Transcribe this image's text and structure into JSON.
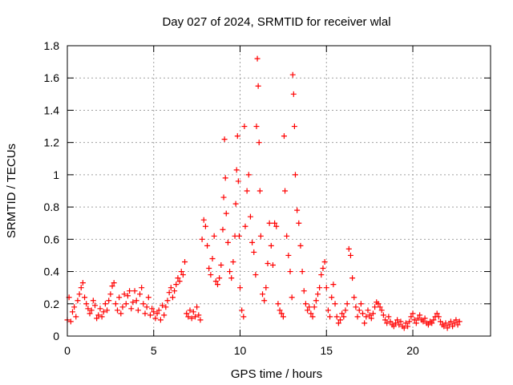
{
  "chart_data": {
    "type": "scatter",
    "title": "Day 027 of 2024, SRMTID for receiver wlal",
    "xlabel": "GPS time / hours",
    "ylabel": "SRMTID / TECUs",
    "xlim": [
      0,
      24.5
    ],
    "ylim": [
      0,
      1.8
    ],
    "xticks": [
      0,
      5,
      10,
      15,
      20
    ],
    "xtick_labels": [
      "0",
      "5",
      "10",
      "15",
      "20"
    ],
    "yticks": [
      0,
      0.2,
      0.4,
      0.6,
      0.8,
      1.0,
      1.2,
      1.4,
      1.6,
      1.8
    ],
    "ytick_labels": [
      "0",
      "0.2",
      "0.4",
      "0.6",
      "0.8",
      "1",
      "1.2",
      "1.4",
      "1.6",
      "1.8"
    ],
    "grid": true,
    "marker": "+",
    "color": "#ff0000",
    "series": [
      {
        "name": "SRMTID",
        "points": [
          [
            0.0,
            0.1
          ],
          [
            0.1,
            0.24
          ],
          [
            0.2,
            0.09
          ],
          [
            0.3,
            0.15
          ],
          [
            0.4,
            0.18
          ],
          [
            0.5,
            0.12
          ],
          [
            0.6,
            0.22
          ],
          [
            0.7,
            0.26
          ],
          [
            0.8,
            0.3
          ],
          [
            0.9,
            0.33
          ],
          [
            1.0,
            0.24
          ],
          [
            1.1,
            0.2
          ],
          [
            1.2,
            0.17
          ],
          [
            1.3,
            0.14
          ],
          [
            1.4,
            0.16
          ],
          [
            1.5,
            0.22
          ],
          [
            1.6,
            0.19
          ],
          [
            1.7,
            0.11
          ],
          [
            1.8,
            0.13
          ],
          [
            1.9,
            0.17
          ],
          [
            2.0,
            0.12
          ],
          [
            2.1,
            0.15
          ],
          [
            2.2,
            0.2
          ],
          [
            2.3,
            0.16
          ],
          [
            2.4,
            0.22
          ],
          [
            2.5,
            0.26
          ],
          [
            2.6,
            0.31
          ],
          [
            2.7,
            0.33
          ],
          [
            2.8,
            0.2
          ],
          [
            2.9,
            0.16
          ],
          [
            3.0,
            0.24
          ],
          [
            3.1,
            0.14
          ],
          [
            3.2,
            0.18
          ],
          [
            3.3,
            0.26
          ],
          [
            3.4,
            0.2
          ],
          [
            3.5,
            0.25
          ],
          [
            3.6,
            0.28
          ],
          [
            3.7,
            0.17
          ],
          [
            3.8,
            0.21
          ],
          [
            3.9,
            0.28
          ],
          [
            4.0,
            0.22
          ],
          [
            4.1,
            0.16
          ],
          [
            4.2,
            0.26
          ],
          [
            4.3,
            0.3
          ],
          [
            4.4,
            0.2
          ],
          [
            4.5,
            0.14
          ],
          [
            4.6,
            0.18
          ],
          [
            4.7,
            0.24
          ],
          [
            4.8,
            0.13
          ],
          [
            4.9,
            0.17
          ],
          [
            5.0,
            0.15
          ],
          [
            5.1,
            0.11
          ],
          [
            5.2,
            0.14
          ],
          [
            5.3,
            0.16
          ],
          [
            5.4,
            0.1
          ],
          [
            5.5,
            0.19
          ],
          [
            5.6,
            0.13
          ],
          [
            5.7,
            0.18
          ],
          [
            5.8,
            0.22
          ],
          [
            5.9,
            0.27
          ],
          [
            6.0,
            0.3
          ],
          [
            6.1,
            0.24
          ],
          [
            6.2,
            0.28
          ],
          [
            6.3,
            0.32
          ],
          [
            6.4,
            0.36
          ],
          [
            6.5,
            0.34
          ],
          [
            6.6,
            0.4
          ],
          [
            6.7,
            0.38
          ],
          [
            6.8,
            0.46
          ],
          [
            6.9,
            0.14
          ],
          [
            7.0,
            0.12
          ],
          [
            7.1,
            0.16
          ],
          [
            7.2,
            0.11
          ],
          [
            7.3,
            0.15
          ],
          [
            7.4,
            0.12
          ],
          [
            7.5,
            0.18
          ],
          [
            7.6,
            0.13
          ],
          [
            7.7,
            0.1
          ],
          [
            7.8,
            0.6
          ],
          [
            7.9,
            0.72
          ],
          [
            8.0,
            0.68
          ],
          [
            8.1,
            0.56
          ],
          [
            8.2,
            0.42
          ],
          [
            8.3,
            0.38
          ],
          [
            8.4,
            0.48
          ],
          [
            8.5,
            0.62
          ],
          [
            8.6,
            0.34
          ],
          [
            8.7,
            0.32
          ],
          [
            8.8,
            0.36
          ],
          [
            8.9,
            0.44
          ],
          [
            9.0,
            0.66
          ],
          [
            9.05,
            0.86
          ],
          [
            9.1,
            1.22
          ],
          [
            9.15,
            0.98
          ],
          [
            9.2,
            0.76
          ],
          [
            9.3,
            0.58
          ],
          [
            9.4,
            0.4
          ],
          [
            9.5,
            0.36
          ],
          [
            9.6,
            0.46
          ],
          [
            9.7,
            0.62
          ],
          [
            9.75,
            0.82
          ],
          [
            9.8,
            1.03
          ],
          [
            9.85,
            1.24
          ],
          [
            9.9,
            0.96
          ],
          [
            9.95,
            0.62
          ],
          [
            10.0,
            0.3
          ],
          [
            10.1,
            0.16
          ],
          [
            10.2,
            0.12
          ],
          [
            10.25,
            1.3
          ],
          [
            10.3,
            0.68
          ],
          [
            10.4,
            0.9
          ],
          [
            10.5,
            1.0
          ],
          [
            10.6,
            0.74
          ],
          [
            10.7,
            0.58
          ],
          [
            10.8,
            0.52
          ],
          [
            10.9,
            0.38
          ],
          [
            10.95,
            1.3
          ],
          [
            11.0,
            1.72
          ],
          [
            11.05,
            1.55
          ],
          [
            11.1,
            1.2
          ],
          [
            11.15,
            0.9
          ],
          [
            11.2,
            0.62
          ],
          [
            11.3,
            0.26
          ],
          [
            11.4,
            0.22
          ],
          [
            11.5,
            0.3
          ],
          [
            11.6,
            0.45
          ],
          [
            11.7,
            0.7
          ],
          [
            11.8,
            0.56
          ],
          [
            11.9,
            0.44
          ],
          [
            12.0,
            0.7
          ],
          [
            12.1,
            0.68
          ],
          [
            12.2,
            0.2
          ],
          [
            12.3,
            0.16
          ],
          [
            12.4,
            0.14
          ],
          [
            12.5,
            0.12
          ],
          [
            12.55,
            1.24
          ],
          [
            12.6,
            0.9
          ],
          [
            12.7,
            0.62
          ],
          [
            12.8,
            0.5
          ],
          [
            12.9,
            0.4
          ],
          [
            13.0,
            0.24
          ],
          [
            13.05,
            1.62
          ],
          [
            13.1,
            1.5
          ],
          [
            13.15,
            1.3
          ],
          [
            13.2,
            1.0
          ],
          [
            13.3,
            0.78
          ],
          [
            13.4,
            0.7
          ],
          [
            13.5,
            0.56
          ],
          [
            13.6,
            0.4
          ],
          [
            13.7,
            0.28
          ],
          [
            13.8,
            0.2
          ],
          [
            13.9,
            0.16
          ],
          [
            14.0,
            0.18
          ],
          [
            14.1,
            0.14
          ],
          [
            14.2,
            0.12
          ],
          [
            14.3,
            0.18
          ],
          [
            14.4,
            0.22
          ],
          [
            14.5,
            0.26
          ],
          [
            14.6,
            0.3
          ],
          [
            14.7,
            0.38
          ],
          [
            14.8,
            0.42
          ],
          [
            14.9,
            0.46
          ],
          [
            15.0,
            0.3
          ],
          [
            15.1,
            0.16
          ],
          [
            15.2,
            0.12
          ],
          [
            15.3,
            0.24
          ],
          [
            15.4,
            0.32
          ],
          [
            15.5,
            0.2
          ],
          [
            15.6,
            0.12
          ],
          [
            15.7,
            0.08
          ],
          [
            15.8,
            0.1
          ],
          [
            15.9,
            0.14
          ],
          [
            16.0,
            0.12
          ],
          [
            16.1,
            0.16
          ],
          [
            16.2,
            0.2
          ],
          [
            16.3,
            0.54
          ],
          [
            16.4,
            0.5
          ],
          [
            16.5,
            0.36
          ],
          [
            16.6,
            0.24
          ],
          [
            16.7,
            0.18
          ],
          [
            16.8,
            0.12
          ],
          [
            16.9,
            0.16
          ],
          [
            17.0,
            0.2
          ],
          [
            17.1,
            0.14
          ],
          [
            17.2,
            0.08
          ],
          [
            17.3,
            0.12
          ],
          [
            17.4,
            0.16
          ],
          [
            17.5,
            0.13
          ],
          [
            17.6,
            0.11
          ],
          [
            17.7,
            0.14
          ],
          [
            17.8,
            0.18
          ],
          [
            17.9,
            0.21
          ],
          [
            18.0,
            0.2
          ],
          [
            18.1,
            0.18
          ],
          [
            18.2,
            0.16
          ],
          [
            18.3,
            0.13
          ],
          [
            18.4,
            0.1
          ],
          [
            18.5,
            0.08
          ],
          [
            18.6,
            0.12
          ],
          [
            18.7,
            0.09
          ],
          [
            18.8,
            0.07
          ],
          [
            18.9,
            0.06
          ],
          [
            19.0,
            0.08
          ],
          [
            19.1,
            0.1
          ],
          [
            19.2,
            0.07
          ],
          [
            19.3,
            0.09
          ],
          [
            19.4,
            0.06
          ],
          [
            19.5,
            0.05
          ],
          [
            19.6,
            0.08
          ],
          [
            19.7,
            0.06
          ],
          [
            19.8,
            0.09
          ],
          [
            19.9,
            0.12
          ],
          [
            20.0,
            0.14
          ],
          [
            20.1,
            0.1
          ],
          [
            20.2,
            0.08
          ],
          [
            20.3,
            0.11
          ],
          [
            20.4,
            0.13
          ],
          [
            20.5,
            0.1
          ],
          [
            20.6,
            0.09
          ],
          [
            20.7,
            0.11
          ],
          [
            20.8,
            0.08
          ],
          [
            20.9,
            0.07
          ],
          [
            21.0,
            0.09
          ],
          [
            21.1,
            0.08
          ],
          [
            21.2,
            0.1
          ],
          [
            21.3,
            0.12
          ],
          [
            21.4,
            0.14
          ],
          [
            21.5,
            0.12
          ],
          [
            21.6,
            0.09
          ],
          [
            21.7,
            0.07
          ],
          [
            21.8,
            0.06
          ],
          [
            21.9,
            0.08
          ],
          [
            22.0,
            0.05
          ],
          [
            22.1,
            0.07
          ],
          [
            22.2,
            0.09
          ],
          [
            22.3,
            0.06
          ],
          [
            22.4,
            0.08
          ],
          [
            22.5,
            0.1
          ],
          [
            22.6,
            0.07
          ],
          [
            22.7,
            0.09
          ]
        ]
      }
    ]
  }
}
